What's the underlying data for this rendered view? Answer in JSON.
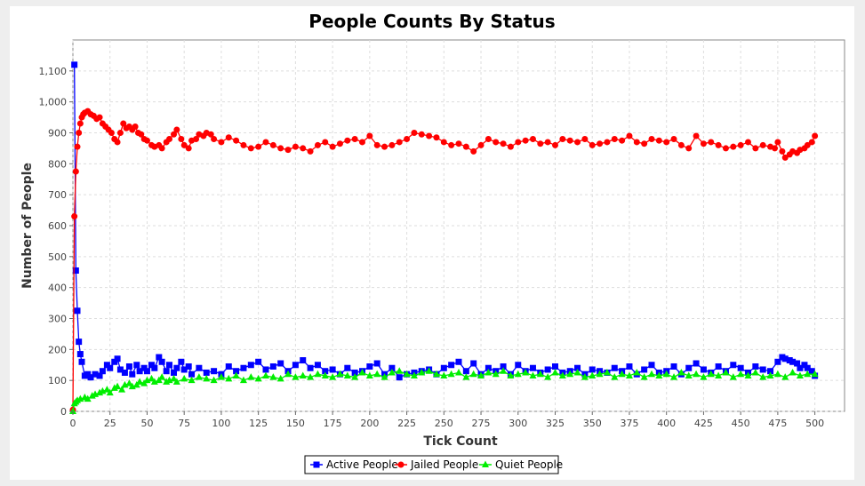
{
  "chart_data": {
    "type": "line",
    "title": "People Counts By Status",
    "xlabel": "Tick Count",
    "ylabel": "Number of People",
    "xlim": [
      0,
      520
    ],
    "ylim": [
      0,
      1200
    ],
    "x_ticks": [
      "0",
      "25",
      "50",
      "75",
      "100",
      "125",
      "150",
      "175",
      "200",
      "225",
      "250",
      "275",
      "300",
      "325",
      "350",
      "375",
      "400",
      "425",
      "450",
      "475",
      "500"
    ],
    "y_ticks": [
      "0",
      "100",
      "200",
      "300",
      "400",
      "500",
      "600",
      "700",
      "800",
      "900",
      "1,000",
      "1,100"
    ],
    "grid": true,
    "legend_position": "bottom",
    "series": [
      {
        "name": "Active People",
        "color": "#0000ff",
        "marker": "square",
        "x": [
          1,
          2,
          3,
          4,
          5,
          6,
          8,
          10,
          12,
          15,
          18,
          20,
          23,
          25,
          28,
          30,
          32,
          35,
          38,
          40,
          43,
          45,
          48,
          50,
          53,
          55,
          58,
          60,
          63,
          65,
          68,
          70,
          73,
          75,
          78,
          80,
          85,
          90,
          95,
          100,
          105,
          110,
          115,
          120,
          125,
          130,
          135,
          140,
          145,
          150,
          155,
          160,
          165,
          170,
          175,
          180,
          185,
          190,
          195,
          200,
          205,
          210,
          215,
          220,
          225,
          230,
          235,
          240,
          245,
          250,
          255,
          260,
          265,
          270,
          275,
          280,
          285,
          290,
          295,
          300,
          305,
          310,
          315,
          320,
          325,
          330,
          335,
          340,
          345,
          350,
          355,
          360,
          365,
          370,
          375,
          380,
          385,
          390,
          395,
          400,
          405,
          410,
          415,
          420,
          425,
          430,
          435,
          440,
          445,
          450,
          455,
          460,
          465,
          470,
          475,
          478,
          480,
          483,
          485,
          488,
          490,
          493,
          495,
          498,
          500
        ],
        "values": [
          1120,
          455,
          325,
          225,
          185,
          160,
          115,
          120,
          110,
          120,
          115,
          130,
          150,
          140,
          160,
          170,
          135,
          125,
          145,
          120,
          150,
          130,
          140,
          130,
          150,
          140,
          175,
          160,
          130,
          150,
          125,
          140,
          160,
          135,
          145,
          120,
          140,
          125,
          130,
          120,
          145,
          130,
          140,
          150,
          160,
          135,
          145,
          155,
          130,
          150,
          165,
          140,
          150,
          130,
          135,
          120,
          140,
          125,
          130,
          145,
          155,
          120,
          140,
          110,
          120,
          125,
          130,
          135,
          120,
          140,
          150,
          160,
          130,
          155,
          120,
          140,
          130,
          145,
          120,
          150,
          130,
          140,
          125,
          135,
          145,
          125,
          130,
          140,
          120,
          135,
          130,
          125,
          140,
          130,
          145,
          120,
          135,
          150,
          125,
          130,
          145,
          120,
          140,
          155,
          135,
          125,
          145,
          130,
          150,
          140,
          125,
          145,
          135,
          130,
          160,
          175,
          170,
          165,
          160,
          155,
          140,
          150,
          140,
          130,
          115
        ]
      },
      {
        "name": "Jailed People",
        "color": "#ff0000",
        "marker": "circle",
        "x": [
          0,
          1,
          2,
          3,
          4,
          5,
          6,
          7,
          8,
          10,
          12,
          14,
          16,
          18,
          20,
          22,
          24,
          26,
          28,
          30,
          32,
          34,
          36,
          38,
          40,
          42,
          44,
          46,
          48,
          50,
          53,
          55,
          58,
          60,
          63,
          65,
          68,
          70,
          73,
          75,
          78,
          80,
          83,
          85,
          88,
          90,
          93,
          95,
          100,
          105,
          110,
          115,
          120,
          125,
          130,
          135,
          140,
          145,
          150,
          155,
          160,
          165,
          170,
          175,
          180,
          185,
          190,
          195,
          200,
          205,
          210,
          215,
          220,
          225,
          230,
          235,
          240,
          245,
          250,
          255,
          260,
          265,
          270,
          275,
          280,
          285,
          290,
          295,
          300,
          305,
          310,
          315,
          320,
          325,
          330,
          335,
          340,
          345,
          350,
          355,
          360,
          365,
          370,
          375,
          380,
          385,
          390,
          395,
          400,
          405,
          410,
          415,
          420,
          425,
          430,
          435,
          440,
          445,
          450,
          455,
          460,
          465,
          470,
          473,
          475,
          478,
          480,
          483,
          485,
          488,
          490,
          493,
          495,
          498,
          500
        ],
        "values": [
          5,
          630,
          775,
          855,
          900,
          930,
          950,
          960,
          965,
          970,
          960,
          955,
          945,
          950,
          930,
          920,
          910,
          900,
          880,
          870,
          900,
          930,
          915,
          920,
          910,
          920,
          900,
          895,
          880,
          875,
          860,
          855,
          860,
          850,
          870,
          880,
          895,
          910,
          880,
          860,
          850,
          875,
          880,
          895,
          890,
          900,
          895,
          880,
          870,
          885,
          875,
          860,
          850,
          855,
          870,
          860,
          850,
          845,
          855,
          850,
          840,
          860,
          870,
          855,
          865,
          875,
          880,
          870,
          890,
          860,
          855,
          860,
          870,
          880,
          900,
          895,
          890,
          885,
          870,
          860,
          865,
          855,
          840,
          860,
          880,
          870,
          865,
          855,
          870,
          875,
          880,
          865,
          870,
          860,
          880,
          875,
          870,
          880,
          860,
          865,
          870,
          880,
          875,
          890,
          870,
          865,
          880,
          875,
          870,
          880,
          860,
          850,
          890,
          865,
          870,
          860,
          850,
          855,
          860,
          870,
          850,
          860,
          855,
          850,
          870,
          840,
          820,
          830,
          840,
          835,
          845,
          850,
          860,
          870,
          890
        ]
      },
      {
        "name": "Quiet People",
        "color": "#00ee00",
        "marker": "triangle",
        "x": [
          0,
          1,
          2,
          3,
          5,
          8,
          10,
          13,
          15,
          18,
          20,
          23,
          25,
          28,
          30,
          33,
          35,
          38,
          40,
          43,
          45,
          48,
          50,
          53,
          55,
          58,
          60,
          63,
          65,
          68,
          70,
          75,
          80,
          85,
          90,
          95,
          100,
          105,
          110,
          115,
          120,
          125,
          130,
          135,
          140,
          145,
          150,
          155,
          160,
          165,
          170,
          175,
          180,
          185,
          190,
          195,
          200,
          205,
          210,
          215,
          220,
          225,
          230,
          235,
          240,
          245,
          250,
          255,
          260,
          265,
          270,
          275,
          280,
          285,
          290,
          295,
          300,
          305,
          310,
          315,
          320,
          325,
          330,
          335,
          340,
          345,
          350,
          355,
          360,
          365,
          370,
          375,
          380,
          385,
          390,
          395,
          400,
          405,
          410,
          415,
          420,
          425,
          430,
          435,
          440,
          445,
          450,
          455,
          460,
          465,
          470,
          475,
          480,
          485,
          490,
          495,
          500
        ],
        "values": [
          0,
          25,
          30,
          35,
          40,
          45,
          40,
          50,
          55,
          60,
          65,
          70,
          60,
          75,
          80,
          70,
          85,
          90,
          80,
          85,
          95,
          90,
          100,
          105,
          95,
          100,
          110,
          95,
          100,
          105,
          95,
          105,
          100,
          110,
          105,
          100,
          110,
          105,
          115,
          100,
          110,
          105,
          115,
          110,
          105,
          120,
          110,
          115,
          110,
          120,
          115,
          110,
          120,
          115,
          110,
          125,
          115,
          120,
          110,
          125,
          130,
          120,
          115,
          125,
          130,
          120,
          115,
          120,
          125,
          110,
          120,
          115,
          125,
          120,
          130,
          115,
          120,
          125,
          115,
          120,
          110,
          125,
          115,
          120,
          125,
          110,
          115,
          120,
          125,
          110,
          120,
          115,
          125,
          110,
          120,
          115,
          120,
          110,
          125,
          115,
          120,
          110,
          120,
          115,
          125,
          110,
          120,
          115,
          125,
          110,
          115,
          120,
          110,
          125,
          115,
          120,
          120
        ]
      }
    ]
  }
}
